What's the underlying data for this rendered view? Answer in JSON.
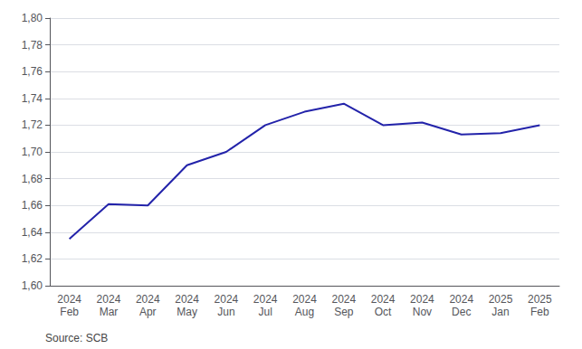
{
  "chart_data": {
    "type": "line",
    "categories": [
      "2024\nFeb",
      "2024\nMar",
      "2024\nApr",
      "2024\nMay",
      "2024\nJun",
      "2024\nJul",
      "2024\nAug",
      "2024\nSep",
      "2024\nOct",
      "2024\nNov",
      "2024\nDec",
      "2025\nJan",
      "2025\nFeb"
    ],
    "values": [
      1.635,
      1.661,
      1.66,
      1.69,
      1.7,
      1.72,
      1.73,
      1.736,
      1.72,
      1.722,
      1.713,
      1.714,
      1.72
    ],
    "color": "#2323AA",
    "ylim": [
      1.6,
      1.8
    ],
    "yticks": [
      {
        "value": 1.6,
        "label": "1,60"
      },
      {
        "value": 1.62,
        "label": "1,62"
      },
      {
        "value": 1.64,
        "label": "1,64"
      },
      {
        "value": 1.66,
        "label": "1,66"
      },
      {
        "value": 1.68,
        "label": "1,68"
      },
      {
        "value": 1.7,
        "label": "1,70"
      },
      {
        "value": 1.72,
        "label": "1,72"
      },
      {
        "value": 1.74,
        "label": "1,74"
      },
      {
        "value": 1.76,
        "label": "1,76"
      },
      {
        "value": 1.78,
        "label": "1,78"
      },
      {
        "value": 1.8,
        "label": "1,80"
      }
    ],
    "grid": true,
    "annotation": "Source: SCB"
  }
}
